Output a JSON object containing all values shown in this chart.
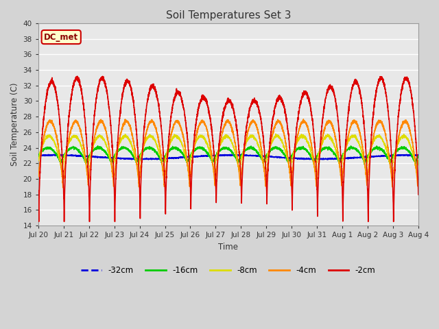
{
  "title": "Soil Temperatures Set 3",
  "xlabel": "Time",
  "ylabel": "Soil Temperature (C)",
  "ylim": [
    14,
    40
  ],
  "yticks": [
    14,
    16,
    18,
    20,
    22,
    24,
    26,
    28,
    30,
    32,
    34,
    36,
    38,
    40
  ],
  "fig_bg_color": "#d4d4d4",
  "plot_bg_color": "#e8e8e8",
  "annotation_text": "DC_met",
  "annotation_bg": "#ffffcc",
  "annotation_border": "#cc0000",
  "series_colors": {
    "-32cm": "#0000dd",
    "-16cm": "#00cc00",
    "-8cm": "#dddd00",
    "-4cm": "#ff8800",
    "-2cm": "#dd0000"
  },
  "legend_labels": [
    "-32cm",
    "-16cm",
    "-8cm",
    "-4cm",
    "-2cm"
  ],
  "legend_colors": [
    "#0000dd",
    "#00cc00",
    "#dddd00",
    "#ff8800",
    "#dd0000"
  ],
  "x_tick_labels": [
    "Jul 20",
    "Jul 21",
    "Jul 22",
    "Jul 23",
    "Jul 24",
    "Jul 25",
    "Jul 26",
    "Jul 27",
    "Jul 28",
    "Jul 29",
    "Jul 30",
    "Jul 31",
    "Aug 1",
    "Aug 2",
    "Aug 3",
    "Aug 4"
  ],
  "num_days": 15,
  "points_per_day": 288,
  "seed": 42
}
